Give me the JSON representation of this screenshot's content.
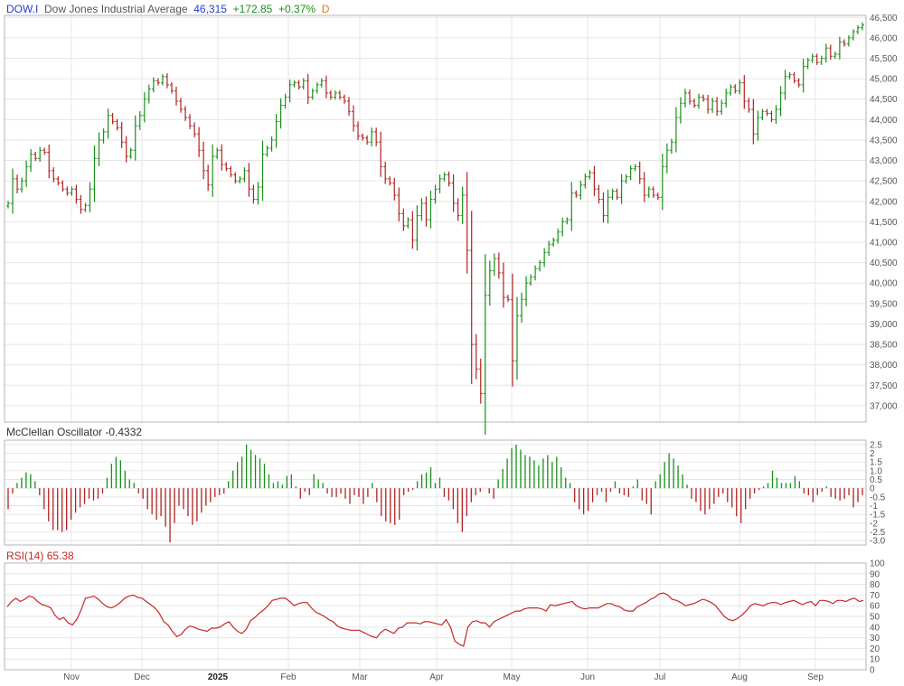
{
  "header": {
    "symbol": "DOW.I",
    "name": "Dow Jones Industrial Average",
    "last": "46,315",
    "change": "+172.85",
    "change_pct": "+0.37%",
    "period": "D"
  },
  "panels": {
    "osc_label": "McClellan Oscillator",
    "osc_value": "-0.4332",
    "rsi_label": "RSI(14)",
    "rsi_value": "65.38"
  },
  "colors": {
    "up": "#1a8f1a",
    "down": "#b22222",
    "rsi_line": "#c62828",
    "grid": "#e6e6e6",
    "border": "#b5b5b5"
  },
  "chart_data": [
    {
      "type": "ohlc",
      "name": "price",
      "ylim": [
        36600,
        46550
      ],
      "yticks": [
        "37,000",
        "37,500",
        "38,000",
        "38,500",
        "39,000",
        "39,500",
        "40,000",
        "40,500",
        "41,000",
        "41,500",
        "42,000",
        "42,500",
        "43,000",
        "43,500",
        "44,000",
        "44,500",
        "45,000",
        "45,500",
        "46,000",
        "46,500"
      ],
      "xticks": [
        "Nov",
        "Dec",
        "2025",
        "Feb",
        "Mar",
        "Apr",
        "May",
        "Jun",
        "Jul",
        "Aug",
        "Sep"
      ],
      "series_close": [
        41950,
        42550,
        42300,
        42500,
        42850,
        43150,
        43050,
        43250,
        43200,
        42750,
        42550,
        42450,
        42300,
        42200,
        42300,
        42050,
        41800,
        41900,
        42300,
        43050,
        43500,
        43700,
        44100,
        43950,
        43800,
        43450,
        43100,
        43250,
        43850,
        44100,
        44500,
        44750,
        44950,
        44900,
        45050,
        44850,
        44700,
        44450,
        44250,
        44050,
        43850,
        43650,
        43250,
        42750,
        42400,
        43100,
        43250,
        42900,
        42800,
        42650,
        42500,
        42550,
        42750,
        42300,
        42050,
        42350,
        43150,
        43300,
        43500,
        43950,
        44350,
        44550,
        44850,
        44900,
        44800,
        44950,
        44550,
        44700,
        44850,
        44950,
        44650,
        44550,
        44650,
        44550,
        44450,
        44200,
        43850,
        43600,
        43550,
        43450,
        43700,
        43450,
        42850,
        42550,
        42450,
        42150,
        41700,
        41400,
        41550,
        41050,
        41650,
        41950,
        41550,
        42050,
        42300,
        42550,
        42650,
        42450,
        41950,
        41650,
        42150,
        40800,
        38500,
        37900,
        37300,
        39700,
        40300,
        40600,
        40250,
        39650,
        39600,
        38100,
        39200,
        39600,
        40000,
        40150,
        40350,
        40500,
        40750,
        40950,
        41050,
        41250,
        41500,
        41550,
        42200,
        42150,
        42400,
        42600,
        42700,
        42300,
        42050,
        41650,
        42100,
        42250,
        42100,
        42500,
        42600,
        42800,
        42850,
        42550,
        42150,
        42300,
        42150,
        42100,
        42850,
        43250,
        43450,
        44050,
        44400,
        44650,
        44450,
        44350,
        44550,
        44500,
        44250,
        44450,
        44200,
        44400,
        44650,
        44800,
        44700,
        44900,
        44450,
        44250,
        43650,
        44050,
        44200,
        44150,
        44000,
        44250,
        44650,
        45050,
        45100,
        44950,
        44850,
        45300,
        45450,
        45550,
        45400,
        45500,
        45750,
        45550,
        45600,
        45900,
        45850,
        46000,
        46150,
        46250,
        46315
      ],
      "overnight_gaps": "stated in close only"
    },
    {
      "type": "bar",
      "name": "McClellan Oscillator",
      "ylim": [
        -3.25,
        2.75
      ],
      "yticks": [
        "2.5",
        "2",
        "1.5",
        "1.0",
        "0.5",
        "0",
        "-0.5",
        "-1",
        "-1.5",
        "-2",
        "-2.5",
        "-3.0"
      ],
      "values": [
        -1.2,
        -0.3,
        0.3,
        0.6,
        0.9,
        0.8,
        0.4,
        -0.4,
        -1.2,
        -1.9,
        -2.4,
        -2.4,
        -2.5,
        -2.4,
        -1.8,
        -1.4,
        -1.1,
        -0.9,
        -0.6,
        -0.7,
        -0.6,
        -0.3,
        0.6,
        1.4,
        1.8,
        1.6,
        1.0,
        0.5,
        0.3,
        -0.3,
        -0.6,
        -1.2,
        -1.5,
        -1.8,
        -1.6,
        -2.2,
        -3.1,
        -2.0,
        -1.0,
        -1.2,
        -1.6,
        -2.1,
        -1.9,
        -1.4,
        -1.0,
        -0.8,
        -0.5,
        -0.4,
        -0.3,
        0.4,
        1.0,
        1.5,
        1.8,
        2.5,
        2.2,
        1.9,
        1.7,
        1.4,
        0.8,
        0.3,
        0.4,
        0.2,
        0.7,
        0.8,
        0.1,
        -0.6,
        -0.2,
        -0.4,
        0.8,
        0.5,
        0.3,
        -0.3,
        -0.5,
        -0.5,
        -0.3,
        -0.6,
        -0.9,
        -0.4,
        -0.5,
        -0.9,
        -0.5,
        0.3,
        -0.8,
        -1.6,
        -1.9,
        -2.0,
        -2.1,
        -1.8,
        -0.4,
        -0.2,
        -0.1,
        0.4,
        0.8,
        0.9,
        1.2,
        0.3,
        0.6,
        -0.5,
        -0.7,
        -1.2,
        -2.0,
        -2.5,
        -1.6,
        -0.8,
        -0.4,
        -0.2,
        0.0,
        -0.3,
        -0.6,
        0.5,
        1.1,
        1.7,
        2.3,
        2.5,
        2.2,
        1.9,
        1.8,
        1.6,
        1.3,
        1.7,
        1.9,
        1.5,
        1.8,
        1.2,
        0.6,
        0.3,
        -0.8,
        -1.2,
        -1.5,
        -1.3,
        -0.8,
        -0.4,
        -0.2,
        -0.8,
        -0.2,
        0.4,
        -0.3,
        -0.4,
        -0.5,
        0.1,
        0.5,
        -0.7,
        -0.9,
        -1.5,
        0.4,
        0.8,
        1.5,
        2.0,
        1.7,
        1.3,
        0.8,
        0.2,
        -0.6,
        -0.8,
        -1.3,
        -1.5,
        -1.2,
        -0.9,
        -0.5,
        -0.3,
        -0.8,
        -1.1,
        -1.6,
        -2.0,
        -1.2,
        -0.6,
        -0.3,
        -0.1,
        0.1,
        0.3,
        1.0,
        0.6,
        0.3,
        0.3,
        0.3,
        0.7,
        0.4,
        -0.3,
        -0.4,
        -0.8,
        -0.4,
        -0.2,
        0.1,
        -0.5,
        -0.6,
        -0.7,
        -0.6,
        -0.4,
        -1.1,
        -0.8,
        -0.4
      ]
    },
    {
      "type": "line",
      "name": "RSI(14)",
      "ylim": [
        0,
        100
      ],
      "yticks": [
        "100",
        "90",
        "80",
        "70",
        "60",
        "50",
        "40",
        "30",
        "20",
        "10",
        "0"
      ],
      "values": [
        59,
        64,
        67,
        64,
        66,
        69,
        68,
        64,
        61,
        60,
        58,
        51,
        47,
        49,
        44,
        42,
        47,
        56,
        67,
        68,
        69,
        66,
        62,
        59,
        58,
        60,
        63,
        67,
        69,
        70,
        68,
        67,
        64,
        61,
        58,
        53,
        45,
        42,
        36,
        31,
        33,
        38,
        41,
        40,
        38,
        37,
        36,
        39,
        39,
        40,
        43,
        45,
        40,
        36,
        34,
        38,
        46,
        49,
        53,
        56,
        60,
        65,
        66,
        67,
        67,
        64,
        60,
        62,
        63,
        63,
        58,
        54,
        52,
        50,
        47,
        45,
        41,
        39,
        38,
        37,
        37,
        37,
        35,
        33,
        31,
        30,
        35,
        38,
        36,
        34,
        39,
        40,
        44,
        44,
        44,
        43,
        45,
        45,
        44,
        43,
        42,
        47,
        40,
        27,
        24,
        22,
        40,
        45,
        46,
        44,
        44,
        40,
        45,
        47,
        49,
        51,
        53,
        55,
        55,
        57,
        58,
        58,
        58,
        57,
        55,
        61,
        60,
        61,
        62,
        63,
        64,
        60,
        58,
        57,
        58,
        58,
        58,
        60,
        62,
        62,
        60,
        59,
        56,
        55,
        55,
        59,
        61,
        63,
        66,
        68,
        71,
        72,
        70,
        66,
        65,
        63,
        60,
        61,
        62,
        64,
        66,
        65,
        63,
        60,
        55,
        50,
        47,
        46,
        48,
        51,
        55,
        60,
        62,
        61,
        60,
        62,
        63,
        63,
        61,
        63,
        64,
        65,
        63,
        61,
        63,
        64,
        60,
        65,
        65,
        64,
        62,
        65,
        65,
        64,
        66,
        67,
        64,
        65
      ]
    }
  ]
}
